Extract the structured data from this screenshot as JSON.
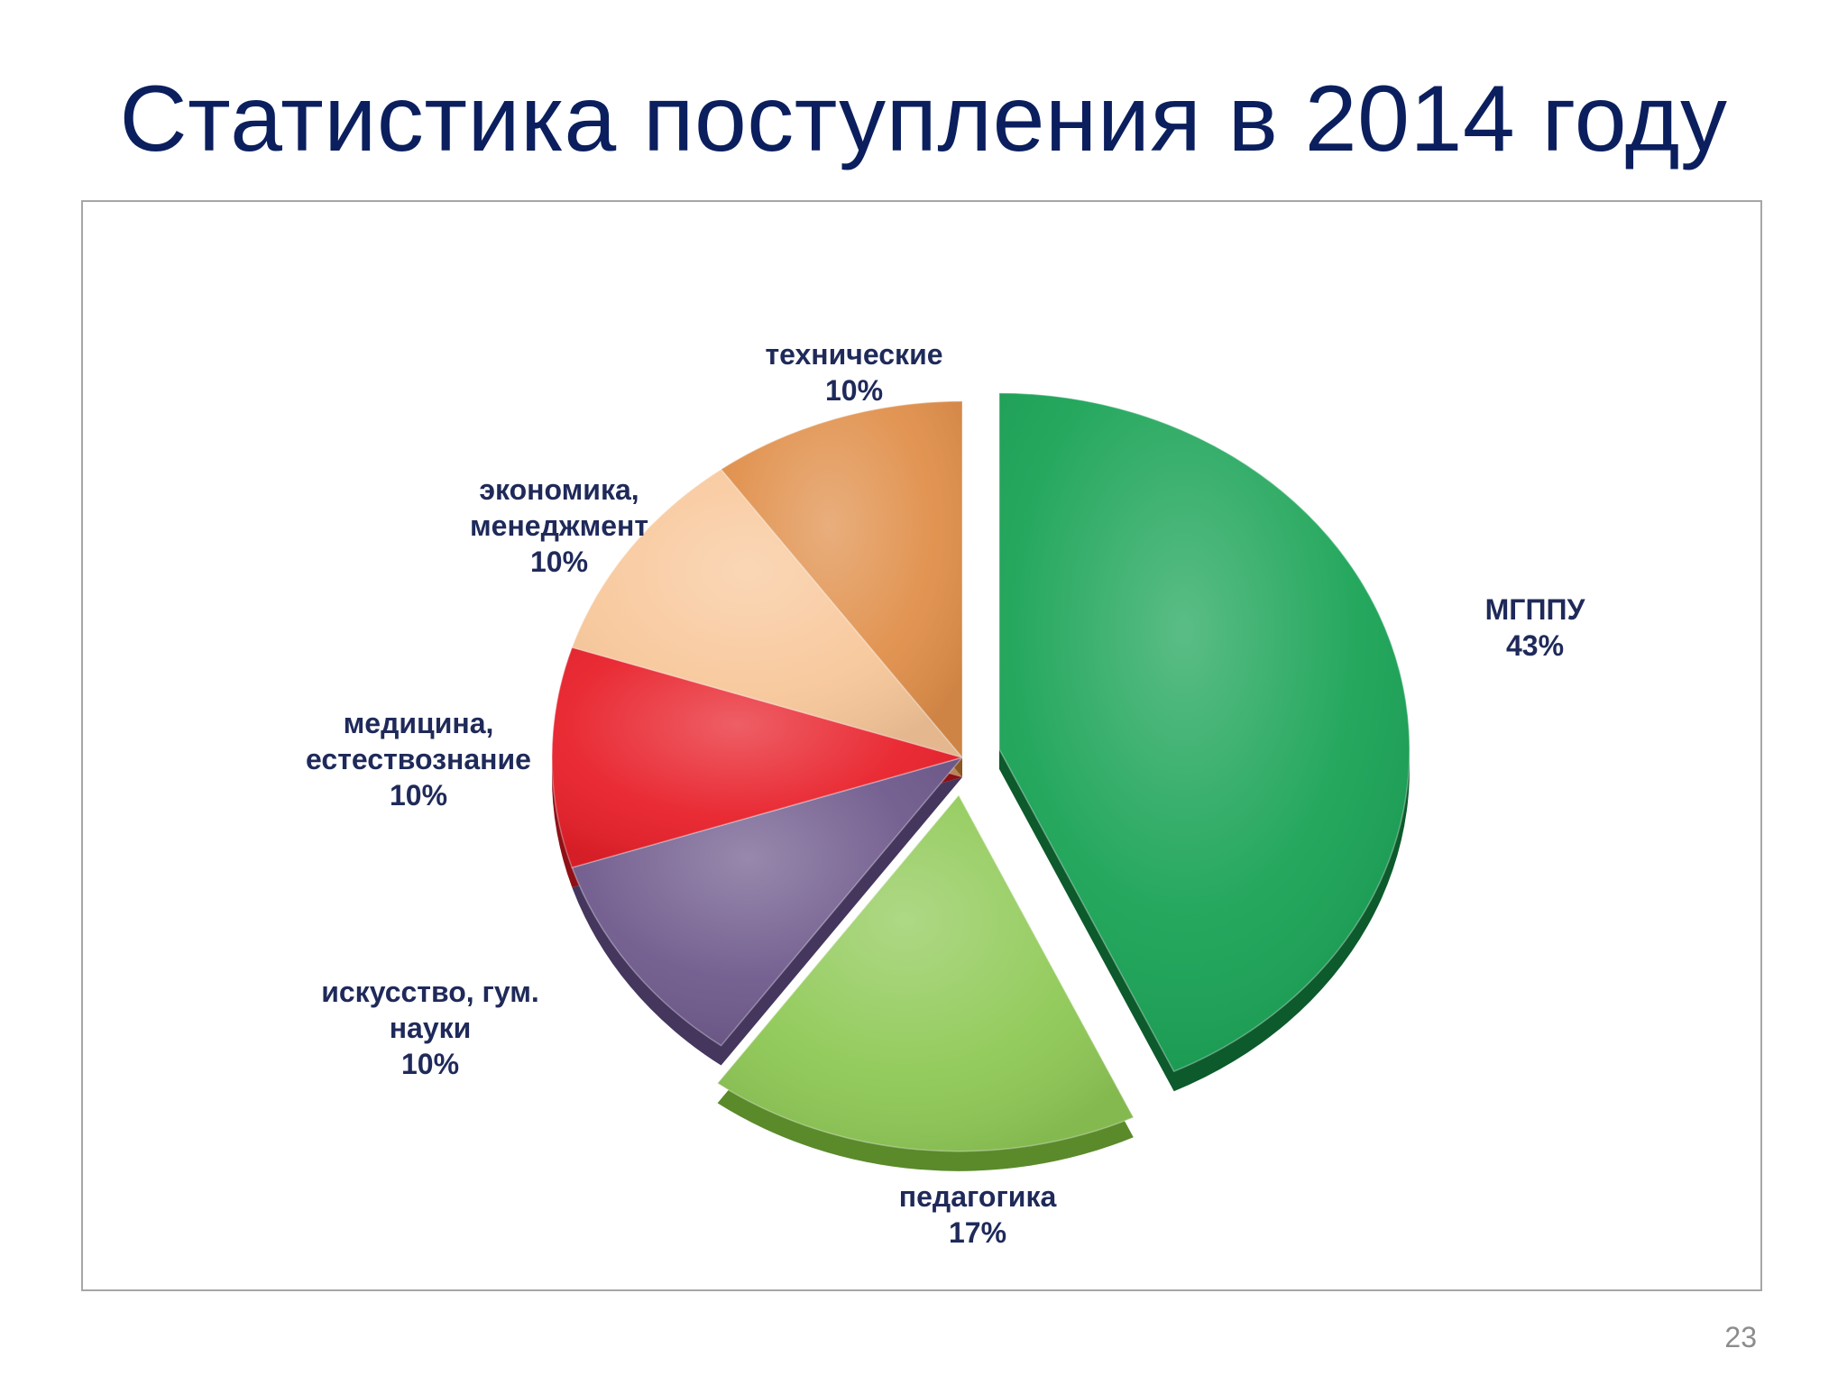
{
  "slide": {
    "title": "Статистика поступления в 2014 году",
    "page_number": "23"
  },
  "chart_data": {
    "type": "pie",
    "title": "",
    "legend": "none",
    "slices": [
      {
        "label_lines": [
          "МГППУ"
        ],
        "value": 43,
        "value_label": "43%",
        "color": "#1aa356",
        "side_color": "#0d5a2c",
        "exploded": true
      },
      {
        "label_lines": [
          "педагогика"
        ],
        "value": 17,
        "value_label": "17%",
        "color": "#8fc956",
        "side_color": "#5a8a2a",
        "exploded": true
      },
      {
        "label_lines": [
          "искусство, гум.",
          "науки"
        ],
        "value": 10,
        "value_label": "10%",
        "color": "#6f5a8c",
        "side_color": "#45365e",
        "exploded": false
      },
      {
        "label_lines": [
          "медицина,",
          "естествознание"
        ],
        "value": 10,
        "value_label": "10%",
        "color": "#e8202a",
        "side_color": "#8f1016",
        "exploded": false
      },
      {
        "label_lines": [
          "экономика,",
          "менеджмент"
        ],
        "value": 10,
        "value_label": "10%",
        "color": "#f8c79a",
        "side_color": "#b8865a",
        "exploded": false
      },
      {
        "label_lines": [
          "технические"
        ],
        "value": 10,
        "value_label": "10%",
        "color": "#e08f4a",
        "side_color": "#8f5520",
        "exploded": false
      }
    ]
  }
}
